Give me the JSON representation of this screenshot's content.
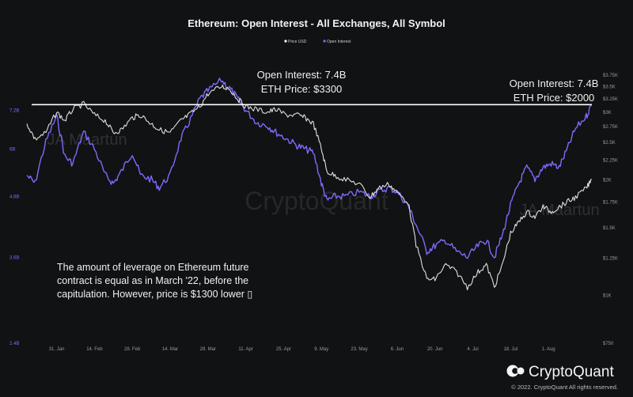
{
  "chart_data": {
    "type": "line",
    "title": "Ethereum: Open Interest - All Exchanges, All Symbol",
    "legend": {
      "placement": "top-center",
      "items": [
        "Price USD",
        "Open Interest"
      ]
    },
    "x_ticks": [
      "31. Jan",
      "14. Feb",
      "28. Feb",
      "14. Mar",
      "28. Mar",
      "11. Apr",
      "25. Apr",
      "9. May",
      "23. May",
      "6. Jun",
      "20. Jun",
      "4. Jul",
      "18. Jul",
      "1. Aug"
    ],
    "x_range": [
      "2022-01-20",
      "2022-08-20"
    ],
    "y_left": {
      "label": "Open Interest",
      "scale": "log",
      "ticks": [
        "2.4B",
        "3.6B",
        "4.8B",
        "6B",
        "7.2B"
      ],
      "tick_values": [
        2.4,
        3.6,
        4.8,
        6,
        7.2
      ],
      "range": [
        2.4,
        8.6
      ],
      "color": "#7b6cff"
    },
    "y_right": {
      "label": "Price USD",
      "scale": "log",
      "ticks": [
        "$750",
        "$1K",
        "$1.25K",
        "$1.5K",
        "$1.75K",
        "$2K",
        "$2.25K",
        "$2.5K",
        "$2.75K",
        "$3K",
        "$3.25K",
        "$3.5K",
        "$3.75K"
      ],
      "tick_values": [
        750,
        1000,
        1250,
        1500,
        1750,
        2000,
        2250,
        2500,
        2750,
        3000,
        3250,
        3500,
        3750
      ],
      "range": [
        750,
        3800
      ],
      "color": "#dcdcdc"
    },
    "grid": false,
    "series": [
      {
        "name": "Price USD",
        "color": "#e0e0e0",
        "points": [
          [
            "2022-01-20",
            2800
          ],
          [
            "2022-01-23",
            2550
          ],
          [
            "2022-01-27",
            2650
          ],
          [
            "2022-01-31",
            3000
          ],
          [
            "2022-02-03",
            2850
          ],
          [
            "2022-02-06",
            3050
          ],
          [
            "2022-02-10",
            3150
          ],
          [
            "2022-02-14",
            2950
          ],
          [
            "2022-02-18",
            2850
          ],
          [
            "2022-02-21",
            2650
          ],
          [
            "2022-02-24",
            2700
          ],
          [
            "2022-02-28",
            2900
          ],
          [
            "2022-03-03",
            2950
          ],
          [
            "2022-03-07",
            2800
          ],
          [
            "2022-03-10",
            2700
          ],
          [
            "2022-03-14",
            2650
          ],
          [
            "2022-03-18",
            2850
          ],
          [
            "2022-03-21",
            2950
          ],
          [
            "2022-03-25",
            3100
          ],
          [
            "2022-03-28",
            3350
          ],
          [
            "2022-04-02",
            3500
          ],
          [
            "2022-04-05",
            3450
          ],
          [
            "2022-04-08",
            3250
          ],
          [
            "2022-04-11",
            3100
          ],
          [
            "2022-04-15",
            3050
          ],
          [
            "2022-04-19",
            3000
          ],
          [
            "2022-04-22",
            3050
          ],
          [
            "2022-04-26",
            2950
          ],
          [
            "2022-04-30",
            2950
          ],
          [
            "2022-05-03",
            2900
          ],
          [
            "2022-05-06",
            2800
          ],
          [
            "2022-05-09",
            2400
          ],
          [
            "2022-05-11",
            2100
          ],
          [
            "2022-05-14",
            2050
          ],
          [
            "2022-05-18",
            2000
          ],
          [
            "2022-05-23",
            1950
          ],
          [
            "2022-05-27",
            1800
          ],
          [
            "2022-05-30",
            1900
          ],
          [
            "2022-06-03",
            1950
          ],
          [
            "2022-06-06",
            1850
          ],
          [
            "2022-06-10",
            1750
          ],
          [
            "2022-06-13",
            1350
          ],
          [
            "2022-06-17",
            1100
          ],
          [
            "2022-06-20",
            1100
          ],
          [
            "2022-06-24",
            1200
          ],
          [
            "2022-06-28",
            1150
          ],
          [
            "2022-07-02",
            1050
          ],
          [
            "2022-07-06",
            1150
          ],
          [
            "2022-07-09",
            1200
          ],
          [
            "2022-07-12",
            1050
          ],
          [
            "2022-07-15",
            1200
          ],
          [
            "2022-07-18",
            1450
          ],
          [
            "2022-07-21",
            1550
          ],
          [
            "2022-07-24",
            1650
          ],
          [
            "2022-07-27",
            1600
          ],
          [
            "2022-07-30",
            1700
          ],
          [
            "2022-08-02",
            1650
          ],
          [
            "2022-08-05",
            1700
          ],
          [
            "2022-08-08",
            1750
          ],
          [
            "2022-08-11",
            1800
          ],
          [
            "2022-08-15",
            1900
          ],
          [
            "2022-08-17",
            2000
          ]
        ]
      },
      {
        "name": "Open Interest",
        "color": "#7b6cff",
        "points": [
          [
            "2022-01-20",
            5.3
          ],
          [
            "2022-01-23",
            5.1
          ],
          [
            "2022-01-27",
            6.2
          ],
          [
            "2022-01-31",
            7.0
          ],
          [
            "2022-02-03",
            5.8
          ],
          [
            "2022-02-06",
            5.6
          ],
          [
            "2022-02-10",
            6.5
          ],
          [
            "2022-02-14",
            6.0
          ],
          [
            "2022-02-18",
            5.3
          ],
          [
            "2022-02-21",
            5.1
          ],
          [
            "2022-02-24",
            5.4
          ],
          [
            "2022-02-28",
            5.9
          ],
          [
            "2022-03-03",
            5.3
          ],
          [
            "2022-03-07",
            5.2
          ],
          [
            "2022-03-10",
            5.0
          ],
          [
            "2022-03-14",
            5.3
          ],
          [
            "2022-03-18",
            6.3
          ],
          [
            "2022-03-21",
            6.8
          ],
          [
            "2022-03-25",
            7.6
          ],
          [
            "2022-03-28",
            7.9
          ],
          [
            "2022-04-02",
            8.3
          ],
          [
            "2022-04-05",
            8.0
          ],
          [
            "2022-04-08",
            7.6
          ],
          [
            "2022-04-11",
            7.2
          ],
          [
            "2022-04-15",
            6.8
          ],
          [
            "2022-04-19",
            6.7
          ],
          [
            "2022-04-22",
            6.5
          ],
          [
            "2022-04-26",
            6.3
          ],
          [
            "2022-04-30",
            6.1
          ],
          [
            "2022-05-03",
            6.0
          ],
          [
            "2022-05-06",
            5.9
          ],
          [
            "2022-05-09",
            5.1
          ],
          [
            "2022-05-11",
            4.7
          ],
          [
            "2022-05-14",
            4.8
          ],
          [
            "2022-05-18",
            4.8
          ],
          [
            "2022-05-23",
            4.9
          ],
          [
            "2022-05-27",
            4.8
          ],
          [
            "2022-05-30",
            4.9
          ],
          [
            "2022-06-03",
            5.0
          ],
          [
            "2022-06-06",
            4.9
          ],
          [
            "2022-06-10",
            4.6
          ],
          [
            "2022-06-13",
            4.2
          ],
          [
            "2022-06-17",
            3.7
          ],
          [
            "2022-06-20",
            3.8
          ],
          [
            "2022-06-24",
            3.9
          ],
          [
            "2022-06-28",
            3.7
          ],
          [
            "2022-07-02",
            3.6
          ],
          [
            "2022-07-06",
            3.8
          ],
          [
            "2022-07-09",
            3.9
          ],
          [
            "2022-07-12",
            3.6
          ],
          [
            "2022-07-15",
            4.0
          ],
          [
            "2022-07-18",
            4.6
          ],
          [
            "2022-07-21",
            5.1
          ],
          [
            "2022-07-24",
            5.5
          ],
          [
            "2022-07-27",
            5.2
          ],
          [
            "2022-07-30",
            5.5
          ],
          [
            "2022-08-02",
            5.6
          ],
          [
            "2022-08-05",
            5.5
          ],
          [
            "2022-08-08",
            6.0
          ],
          [
            "2022-08-11",
            6.6
          ],
          [
            "2022-08-15",
            7.0
          ],
          [
            "2022-08-17",
            7.4
          ]
        ]
      }
    ],
    "reference_line": {
      "value": 7.4,
      "axis": "left",
      "color": "#ffffff"
    },
    "annotations": [
      {
        "lines": [
          "Open Interest: 7.4B",
          "ETH Price: $3300"
        ]
      },
      {
        "lines": [
          "Open Interest: 7.4B",
          "ETH Price: $2000"
        ]
      },
      {
        "lines": [
          "The amount of leverage on Ethereum future",
          "contract is equal as in March '22, before the",
          "capitulation. However, price is $1300 lower ▯"
        ]
      }
    ],
    "watermarks": [
      "JA Maartun",
      "CryptoQuant",
      "JA Maartun"
    ]
  },
  "footer": {
    "brand": "CryptoQuant",
    "copyright": "© 2022. CryptoQuant All rights reserved."
  }
}
